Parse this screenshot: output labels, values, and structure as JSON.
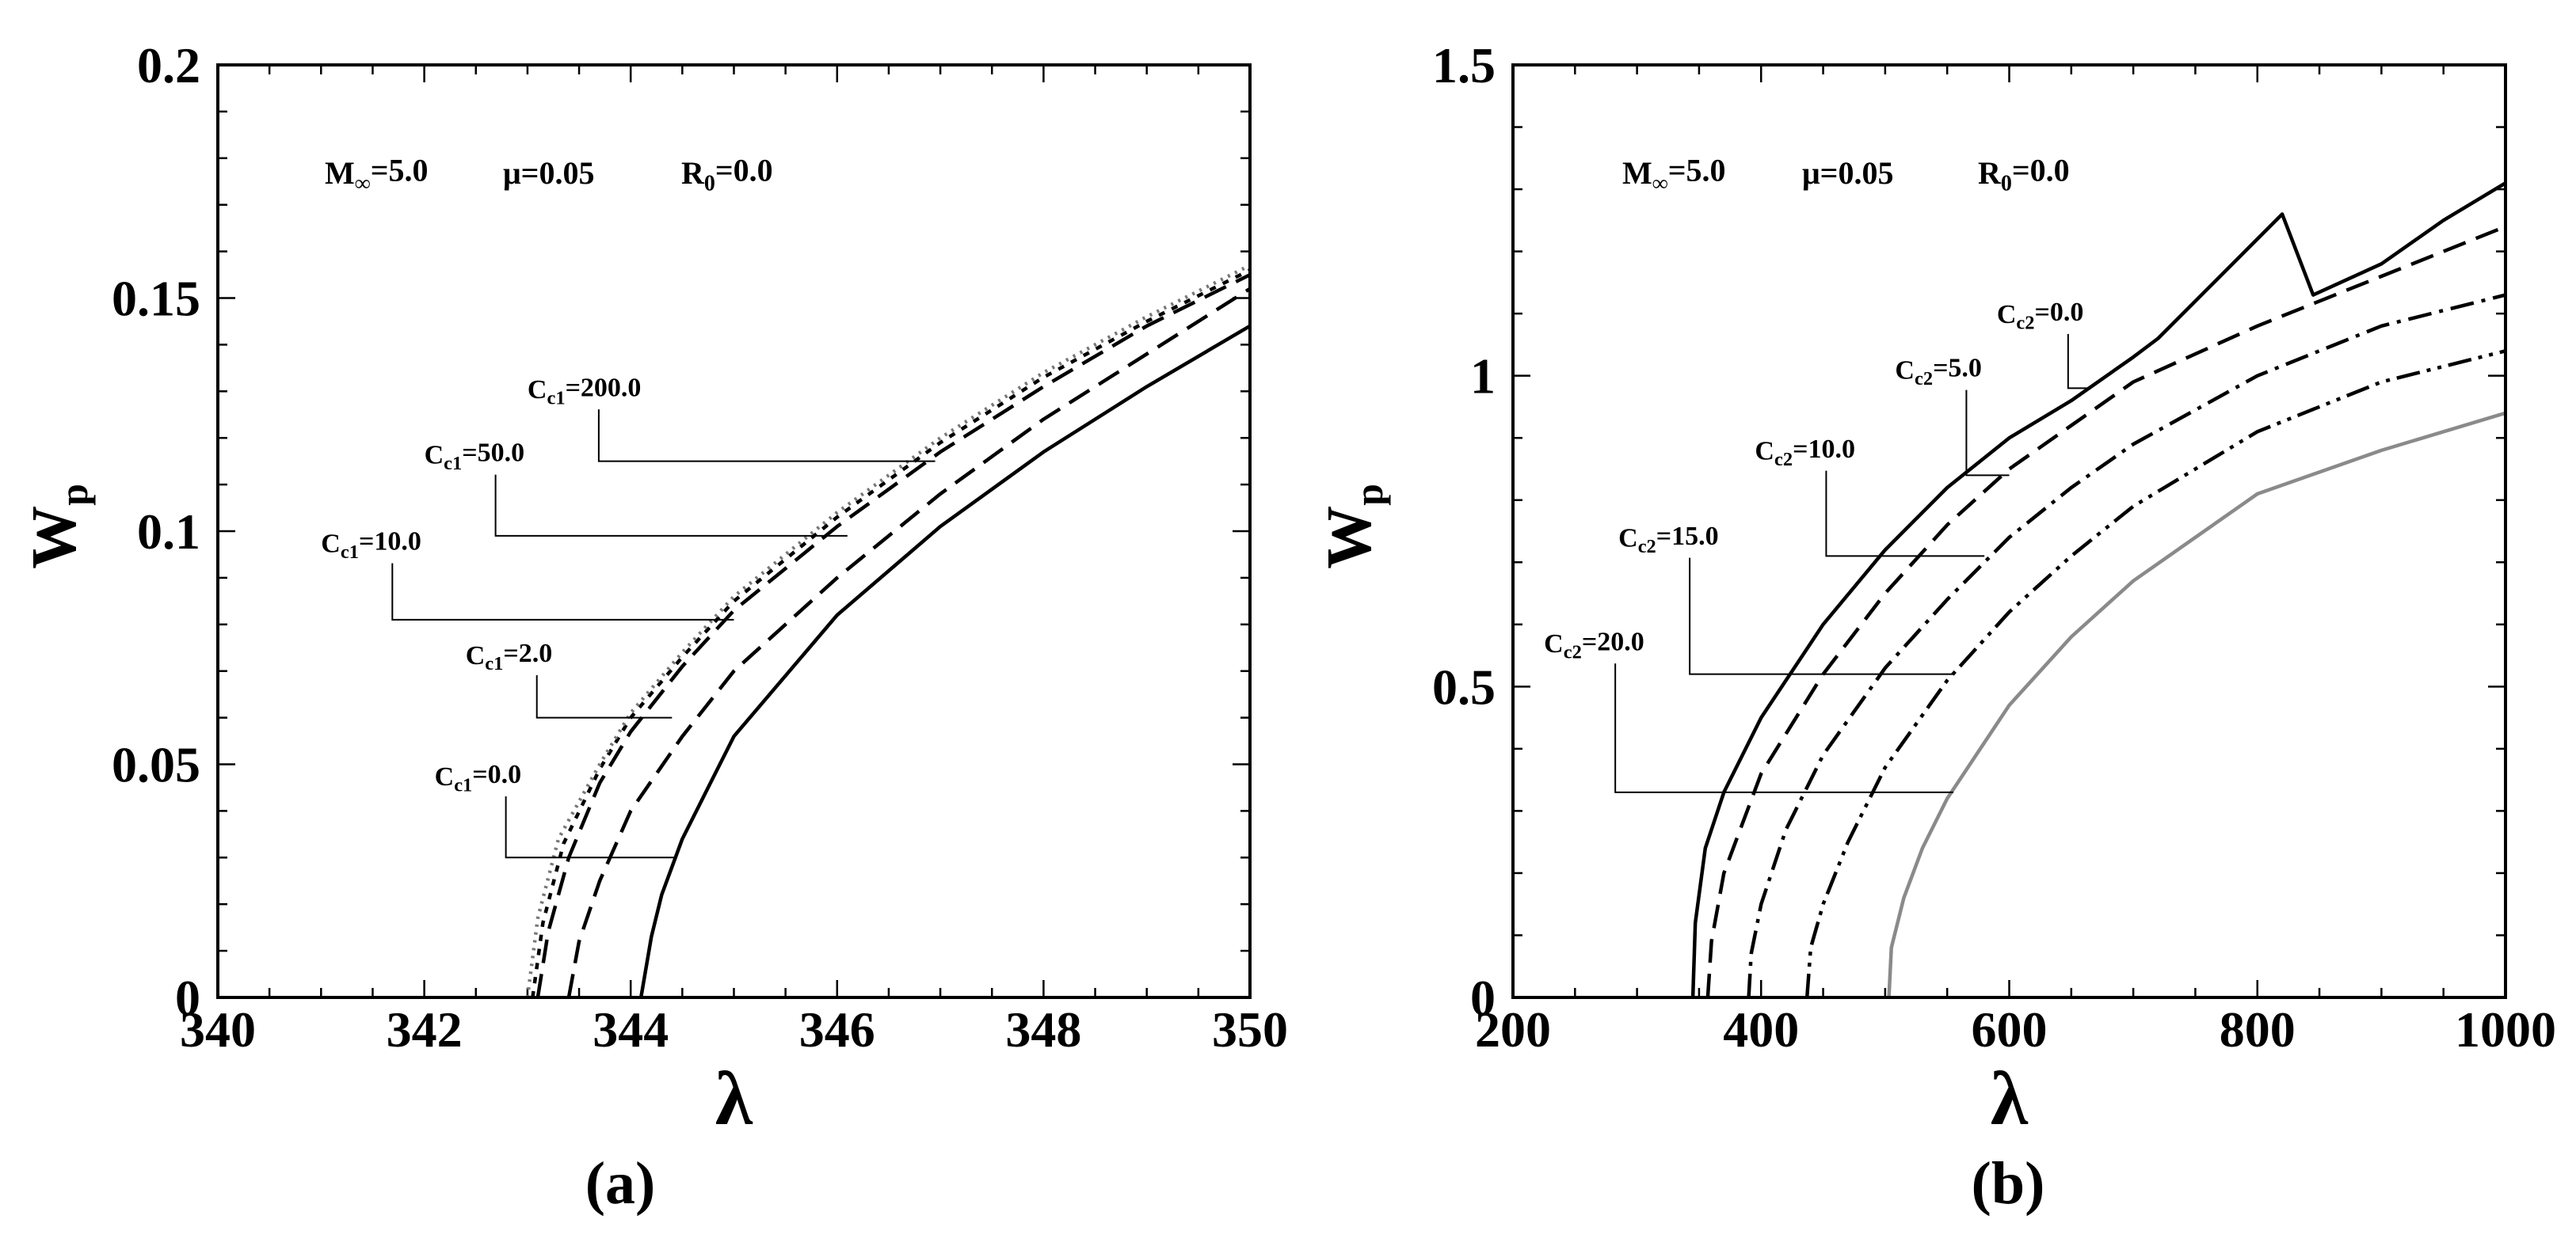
{
  "chart_data": [
    {
      "type": "line",
      "panel_label": "(a)",
      "xlabel": "λ",
      "ylabel": {
        "main": "W",
        "sub": "p"
      },
      "xlim": [
        340,
        350
      ],
      "ylim": [
        0,
        0.2
      ],
      "xticks": [
        340,
        342,
        344,
        346,
        348,
        350
      ],
      "xtick_labels": [
        "340",
        "342",
        "344",
        "346",
        "348",
        "350"
      ],
      "yticks": [
        0,
        0.05,
        0.1,
        0.15,
        0.2
      ],
      "ytick_labels": [
        "0",
        "0.05",
        "0.1",
        "0.15",
        "0.2"
      ],
      "annotation": [
        {
          "main": "M",
          "sub": "∞",
          "rest": "=5.0"
        },
        {
          "main": "μ=0.05"
        },
        {
          "main": "R",
          "sub": "0",
          "rest": "=0.0"
        }
      ],
      "series": [
        {
          "name": {
            "main": "C",
            "sub": "c1",
            "rest": "=0.0"
          },
          "color": "#000000",
          "dash": "",
          "x": [
            344.1,
            344.2,
            344.3,
            344.5,
            345.0,
            346.0,
            347.0,
            348.0,
            349.0,
            350.0
          ],
          "y": [
            0.0,
            0.013,
            0.022,
            0.034,
            0.056,
            0.082,
            0.101,
            0.117,
            0.131,
            0.144
          ],
          "label_at": [
            342.1,
            0.0455
          ],
          "leader_to": [
            344.45,
            0.03
          ]
        },
        {
          "name": {
            "main": "C",
            "sub": "c1",
            "rest": "=2.0"
          },
          "color": "#000000",
          "dash": "30 14",
          "x": [
            343.4,
            343.5,
            343.7,
            344.0,
            344.5,
            345.0,
            346.0,
            347.0,
            348.0,
            349.0,
            350.0
          ],
          "y": [
            0.0,
            0.012,
            0.025,
            0.04,
            0.056,
            0.07,
            0.09,
            0.108,
            0.124,
            0.138,
            0.152
          ],
          "label_at": [
            342.4,
            0.0715
          ],
          "leader_to": [
            344.4,
            0.06
          ]
        },
        {
          "name": {
            "main": "C",
            "sub": "c1",
            "rest": "=10.0"
          },
          "color": "#000000",
          "dash": "30 14",
          "x": [
            343.1,
            343.2,
            343.4,
            343.7,
            344.0,
            344.5,
            345.0,
            346.0,
            347.0,
            348.0,
            349.0,
            350.0
          ],
          "y": [
            0.0,
            0.014,
            0.03,
            0.046,
            0.057,
            0.071,
            0.083,
            0.101,
            0.117,
            0.131,
            0.144,
            0.155
          ],
          "label_at": [
            341.0,
            0.0955
          ],
          "leader_to": [
            345.0,
            0.081
          ]
        },
        {
          "name": {
            "main": "C",
            "sub": "c1",
            "rest": "=50.0"
          },
          "color": "#000000",
          "dash": "8 10",
          "x": [
            343.05,
            343.15,
            343.35,
            343.7,
            344.0,
            344.5,
            345.0,
            346.0,
            347.0,
            348.0,
            349.0,
            350.0
          ],
          "y": [
            0.0,
            0.016,
            0.033,
            0.049,
            0.06,
            0.073,
            0.085,
            0.103,
            0.119,
            0.133,
            0.145,
            0.156
          ],
          "label_at": [
            342.0,
            0.1145
          ],
          "leader_to": [
            346.1,
            0.099
          ]
        },
        {
          "name": {
            "main": "C",
            "sub": "c1",
            "rest": "=200.0"
          },
          "color": "#777777",
          "dash": "3 7",
          "x": [
            343.0,
            343.1,
            343.3,
            343.7,
            344.0,
            344.5,
            345.0,
            346.0,
            347.0,
            348.0,
            349.0,
            350.0
          ],
          "y": [
            0.0,
            0.017,
            0.034,
            0.05,
            0.061,
            0.074,
            0.086,
            0.104,
            0.12,
            0.134,
            0.146,
            0.157
          ],
          "label_at": [
            343.0,
            0.1285
          ],
          "leader_to": [
            346.95,
            0.115
          ]
        }
      ]
    },
    {
      "type": "line",
      "panel_label": "(b)",
      "xlabel": "λ",
      "ylabel": {
        "main": "W",
        "sub": "p"
      },
      "xlim": [
        200,
        1000
      ],
      "ylim": [
        0,
        1.5
      ],
      "xticks": [
        200,
        400,
        600,
        800,
        1000
      ],
      "xtick_labels": [
        "200",
        "400",
        "600",
        "800",
        "1000"
      ],
      "yticks": [
        0,
        0.5,
        1,
        1.5
      ],
      "ytick_labels": [
        "0",
        "0.5",
        "1",
        "1.5"
      ],
      "annotation": [
        {
          "main": "M",
          "sub": "∞",
          "rest": "=5.0"
        },
        {
          "main": "μ=0.05"
        },
        {
          "main": "R",
          "sub": "0",
          "rest": "=0.0"
        }
      ],
      "series": [
        {
          "name": {
            "main": "C",
            "sub": "c2",
            "rest": "=0.0"
          },
          "color": "#000000",
          "dash": "",
          "x": [
            345,
            347,
            355,
            370,
            400,
            450,
            500,
            550,
            600,
            650,
            700,
            720,
            760,
            800,
            820,
            845,
            900,
            950,
            1000
          ],
          "y": [
            0.0,
            0.12,
            0.24,
            0.33,
            0.45,
            0.6,
            0.72,
            0.82,
            0.9,
            0.96,
            1.03,
            1.06,
            1.14,
            1.22,
            1.26,
            1.13,
            1.18,
            1.25,
            1.31
          ],
          "label_at": [
            590,
            1.085
          ],
          "leader_to": [
            665,
            0.98
          ]
        },
        {
          "name": {
            "main": "C",
            "sub": "c2",
            "rest": "=5.0"
          },
          "color": "#000000",
          "dash": "30 14",
          "x": [
            357,
            360,
            370,
            400,
            450,
            500,
            550,
            600,
            650,
            700,
            800,
            900,
            1000
          ],
          "y": [
            0.0,
            0.09,
            0.2,
            0.36,
            0.52,
            0.65,
            0.76,
            0.85,
            0.92,
            0.99,
            1.08,
            1.16,
            1.24
          ],
          "label_at": [
            508,
            0.995
          ],
          "leader_to": [
            600,
            0.84
          ]
        },
        {
          "name": {
            "main": "C",
            "sub": "c2",
            "rest": "=10.0"
          },
          "color": "#000000",
          "dash": "30 10 5 10",
          "x": [
            390,
            392,
            400,
            420,
            450,
            500,
            550,
            600,
            650,
            700,
            800,
            900,
            1000
          ],
          "y": [
            0.0,
            0.07,
            0.15,
            0.27,
            0.39,
            0.53,
            0.64,
            0.74,
            0.82,
            0.89,
            1.0,
            1.08,
            1.13
          ],
          "label_at": [
            395,
            0.865
          ],
          "leader_to": [
            580,
            0.71
          ]
        },
        {
          "name": {
            "main": "C",
            "sub": "c2",
            "rest": "=15.0"
          },
          "color": "#000000",
          "dash": "30 9 5 9 5 9",
          "x": [
            437,
            440,
            450,
            470,
            500,
            550,
            600,
            650,
            700,
            800,
            900,
            1000
          ],
          "y": [
            0.0,
            0.08,
            0.15,
            0.25,
            0.37,
            0.51,
            0.62,
            0.71,
            0.79,
            0.91,
            0.99,
            1.04
          ],
          "label_at": [
            285,
            0.725
          ],
          "leader_to": [
            555,
            0.52
          ]
        },
        {
          "name": {
            "main": "C",
            "sub": "c2",
            "rest": "=20.0"
          },
          "color": "#8a8a8a",
          "dash": "",
          "x": [
            503,
            505,
            515,
            530,
            550,
            600,
            650,
            700,
            750,
            800,
            900,
            1000
          ],
          "y": [
            0.0,
            0.08,
            0.16,
            0.24,
            0.32,
            0.47,
            0.58,
            0.67,
            0.74,
            0.81,
            0.88,
            0.94
          ],
          "label_at": [
            225,
            0.555
          ],
          "leader_to": [
            555,
            0.33
          ]
        }
      ]
    }
  ]
}
